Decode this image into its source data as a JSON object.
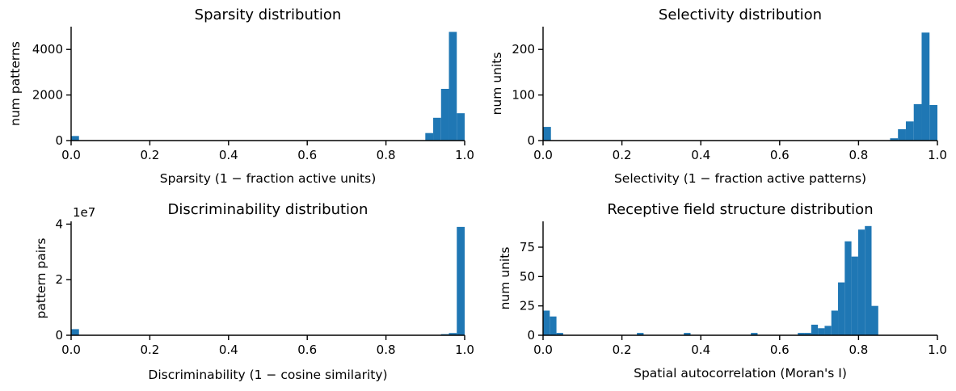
{
  "chart_data": [
    {
      "type": "bar",
      "title": "Sparsity distribution",
      "xlabel": "Sparsity (1 −  fraction active units)",
      "ylabel": "num patterns",
      "xlim": [
        0,
        1.0
      ],
      "ylim": [
        0,
        5000
      ],
      "xticks": [
        "0.0",
        "0.2",
        "0.4",
        "0.6",
        "0.8",
        "1.0"
      ],
      "yticks": [
        {
          "value": 0,
          "label": "0"
        },
        {
          "value": 2000,
          "label": "2000"
        },
        {
          "value": 4000,
          "label": "4000"
        }
      ],
      "bars": [
        {
          "x0": 0.0,
          "x1": 0.02,
          "value": 200
        },
        {
          "x0": 0.9,
          "x1": 0.92,
          "value": 330
        },
        {
          "x0": 0.92,
          "x1": 0.94,
          "value": 1000
        },
        {
          "x0": 0.94,
          "x1": 0.96,
          "value": 2270
        },
        {
          "x0": 0.96,
          "x1": 0.98,
          "value": 4770
        },
        {
          "x0": 0.98,
          "x1": 1.0,
          "value": 1200
        }
      ]
    },
    {
      "type": "bar",
      "title": "Selectivity distribution",
      "xlabel": "Selectivity (1 −  fraction active patterns)",
      "ylabel": "num units",
      "xlim": [
        0,
        1.0
      ],
      "ylim": [
        0,
        250
      ],
      "xticks": [
        "0.0",
        "0.2",
        "0.4",
        "0.6",
        "0.8",
        "1.0"
      ],
      "yticks": [
        {
          "value": 0,
          "label": "0"
        },
        {
          "value": 100,
          "label": "100"
        },
        {
          "value": 200,
          "label": "200"
        }
      ],
      "bars": [
        {
          "x0": 0.0,
          "x1": 0.02,
          "value": 30
        },
        {
          "x0": 0.88,
          "x1": 0.9,
          "value": 5
        },
        {
          "x0": 0.9,
          "x1": 0.92,
          "value": 25
        },
        {
          "x0": 0.92,
          "x1": 0.94,
          "value": 42
        },
        {
          "x0": 0.94,
          "x1": 0.96,
          "value": 80
        },
        {
          "x0": 0.96,
          "x1": 0.98,
          "value": 237
        },
        {
          "x0": 0.98,
          "x1": 1.0,
          "value": 78
        }
      ]
    },
    {
      "type": "bar",
      "title": "Discriminability distribution",
      "xlabel": "Discriminability (1 −  cosine similarity)",
      "ylabel": "pattern pairs",
      "offset_label": "1e7",
      "xlim": [
        0,
        1.0
      ],
      "ylim": [
        0,
        4.1
      ],
      "xticks": [
        "0.0",
        "0.2",
        "0.4",
        "0.6",
        "0.8",
        "1.0"
      ],
      "yticks": [
        {
          "value": 0,
          "label": "0"
        },
        {
          "value": 2,
          "label": "2"
        },
        {
          "value": 4,
          "label": "4"
        }
      ],
      "bars": [
        {
          "x0": 0.0,
          "x1": 0.02,
          "value": 0.22
        },
        {
          "x0": 0.94,
          "x1": 0.96,
          "value": 0.04
        },
        {
          "x0": 0.96,
          "x1": 0.98,
          "value": 0.08
        },
        {
          "x0": 0.98,
          "x1": 1.0,
          "value": 3.9
        }
      ]
    },
    {
      "type": "bar",
      "title": "Receptive field structure distribution",
      "xlabel": "Spatial autocorrelation (Moran's I)",
      "ylabel": "num units",
      "xlim": [
        0,
        1.0
      ],
      "ylim": [
        0,
        97
      ],
      "xticks": [
        "0.0",
        "0.2",
        "0.4",
        "0.6",
        "0.8",
        "1.0"
      ],
      "yticks": [
        {
          "value": 0,
          "label": "0"
        },
        {
          "value": 25,
          "label": "25"
        },
        {
          "value": 50,
          "label": "50"
        },
        {
          "value": 75,
          "label": "75"
        }
      ],
      "bars": [
        {
          "x0": 0.0,
          "x1": 0.017,
          "value": 21
        },
        {
          "x0": 0.017,
          "x1": 0.034,
          "value": 16
        },
        {
          "x0": 0.034,
          "x1": 0.051,
          "value": 2
        },
        {
          "x0": 0.238,
          "x1": 0.255,
          "value": 2
        },
        {
          "x0": 0.357,
          "x1": 0.374,
          "value": 2
        },
        {
          "x0": 0.527,
          "x1": 0.544,
          "value": 2
        },
        {
          "x0": 0.646,
          "x1": 0.663,
          "value": 2
        },
        {
          "x0": 0.663,
          "x1": 0.68,
          "value": 2
        },
        {
          "x0": 0.68,
          "x1": 0.697,
          "value": 9
        },
        {
          "x0": 0.697,
          "x1": 0.714,
          "value": 6
        },
        {
          "x0": 0.714,
          "x1": 0.731,
          "value": 8
        },
        {
          "x0": 0.731,
          "x1": 0.748,
          "value": 21
        },
        {
          "x0": 0.748,
          "x1": 0.765,
          "value": 45
        },
        {
          "x0": 0.765,
          "x1": 0.782,
          "value": 80
        },
        {
          "x0": 0.782,
          "x1": 0.799,
          "value": 67
        },
        {
          "x0": 0.799,
          "x1": 0.816,
          "value": 90
        },
        {
          "x0": 0.816,
          "x1": 0.833,
          "value": 93
        },
        {
          "x0": 0.833,
          "x1": 0.85,
          "value": 25
        }
      ]
    }
  ],
  "colors": {
    "bar": "#1f77b4",
    "axis": "#000000"
  }
}
